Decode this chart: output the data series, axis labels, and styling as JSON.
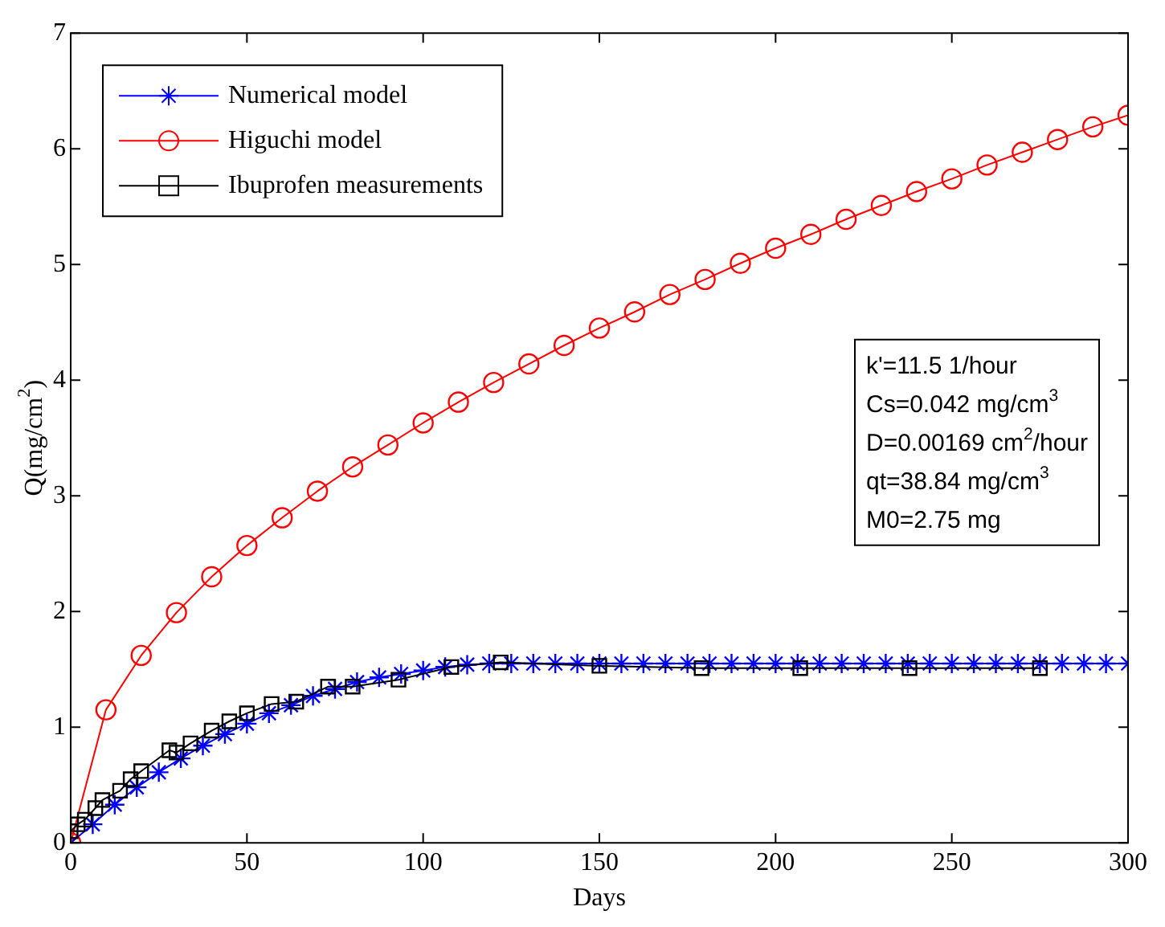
{
  "chart_data": {
    "type": "line",
    "xlabel": "Days",
    "ylabel": "Q(mg/cm$^{2}$)",
    "xlim": [
      0,
      300
    ],
    "ylim": [
      0,
      7
    ],
    "xticks": [
      0,
      50,
      100,
      150,
      200,
      250,
      300
    ],
    "yticks": [
      0,
      1,
      2,
      3,
      4,
      5,
      6,
      7
    ],
    "grid": false,
    "legend": "top left",
    "annotations": [
      "k'=11.5 1/hour",
      "Cs=0.042 mg/cm$^{3}$",
      "D=0.00169 cm$^{2}$/hour",
      "qt=38.84 mg/cm$^{3}$",
      "M0=2.75 mg"
    ],
    "series": [
      {
        "name": "Numerical model",
        "color": "#0000ff",
        "marker": "cross",
        "x": [
          0,
          6.25,
          12.5,
          18.75,
          25,
          31.25,
          37.5,
          43.75,
          50,
          56.25,
          62.5,
          68.75,
          75,
          81.25,
          87.5,
          93.75,
          100,
          106.25,
          112.5,
          118.75,
          125,
          131.25,
          137.5,
          143.75,
          150,
          156.25,
          162.5,
          168.75,
          175,
          181.25,
          187.5,
          193.75,
          200,
          206.25,
          212.5,
          218.75,
          225,
          231.25,
          237.5,
          243.75,
          250,
          256.25,
          262.5,
          268.75,
          275,
          281.25,
          287.5,
          293.75,
          300
        ],
        "values": [
          0,
          0.16,
          0.33,
          0.48,
          0.61,
          0.73,
          0.84,
          0.94,
          1.03,
          1.12,
          1.19,
          1.27,
          1.33,
          1.39,
          1.43,
          1.46,
          1.49,
          1.52,
          1.54,
          1.55,
          1.55,
          1.55,
          1.55,
          1.55,
          1.55,
          1.55,
          1.55,
          1.55,
          1.55,
          1.55,
          1.55,
          1.55,
          1.55,
          1.55,
          1.55,
          1.55,
          1.55,
          1.55,
          1.55,
          1.55,
          1.55,
          1.55,
          1.55,
          1.55,
          1.55,
          1.55,
          1.55,
          1.55,
          1.55
        ]
      },
      {
        "name": "Higuchi model",
        "color": "#ff0000",
        "marker": "circle",
        "x": [
          0,
          10,
          20,
          30,
          40,
          50,
          60,
          70,
          80,
          90,
          100,
          110,
          120,
          130,
          140,
          150,
          160,
          170,
          180,
          190,
          200,
          210,
          220,
          230,
          240,
          250,
          260,
          270,
          280,
          290,
          300
        ],
        "values": [
          0,
          1.15,
          1.62,
          1.99,
          2.3,
          2.57,
          2.81,
          3.04,
          3.25,
          3.44,
          3.63,
          3.81,
          3.98,
          4.14,
          4.3,
          4.45,
          4.59,
          4.74,
          4.87,
          5.01,
          5.14,
          5.26,
          5.39,
          5.51,
          5.63,
          5.74,
          5.86,
          5.97,
          6.08,
          6.19,
          6.29
        ]
      },
      {
        "name": "Ibuprofen measurements",
        "color": "#000000",
        "marker": "square",
        "x": [
          0,
          2,
          4,
          7,
          9,
          14,
          17,
          20,
          28,
          30,
          34,
          40,
          45,
          50,
          57,
          64,
          73,
          80,
          93,
          108,
          122,
          150,
          179,
          207,
          238,
          275
        ],
        "values": [
          0.1,
          0.16,
          0.2,
          0.3,
          0.37,
          0.45,
          0.55,
          0.62,
          0.8,
          0.78,
          0.86,
          0.97,
          1.05,
          1.12,
          1.2,
          1.22,
          1.35,
          1.35,
          1.41,
          1.52,
          1.56,
          1.53,
          1.51,
          1.51,
          1.51,
          1.51
        ]
      }
    ]
  }
}
